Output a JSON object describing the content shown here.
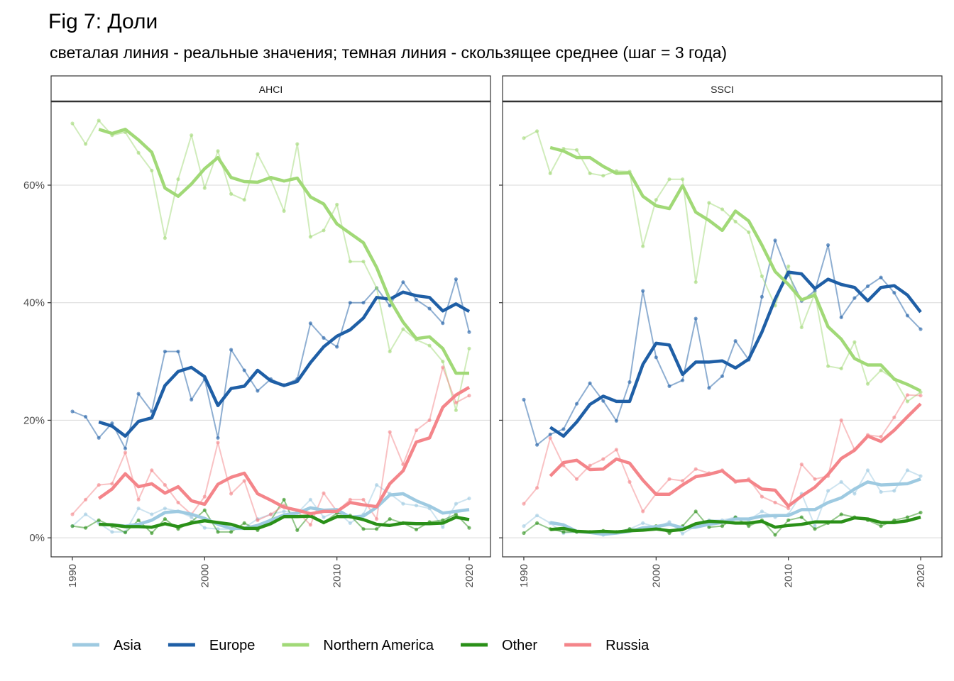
{
  "title": "Fig 7: Доли",
  "subtitle": "светалая линия - реальные значения; темная линия - скользящее среднее (шаг = 3 года)",
  "colors": {
    "Asia": "#9ecae1",
    "Europe": "#1f5fa6",
    "Northern America": "#a1d977",
    "Other": "#2a9018",
    "Russia": "#f4858a"
  },
  "legend": [
    "Asia",
    "Europe",
    "Northern America",
    "Other",
    "Russia"
  ],
  "chart_data": [
    {
      "type": "line",
      "panel": "AHCI",
      "x": [
        1990,
        1991,
        1992,
        1993,
        1994,
        1995,
        1996,
        1997,
        1998,
        1999,
        2000,
        2001,
        2002,
        2003,
        2004,
        2005,
        2006,
        2007,
        2008,
        2009,
        2010,
        2011,
        2012,
        2013,
        2014,
        2015,
        2016,
        2017,
        2018,
        2019,
        2020
      ],
      "xticks": [
        1990,
        2000,
        2010,
        2020
      ],
      "ylim": [
        -3,
        74
      ],
      "yticks": [
        0,
        20,
        40,
        60
      ],
      "ytick_labels": [
        "0%",
        "20%",
        "40%",
        "60%"
      ],
      "series": [
        {
          "name": "Asia",
          "values": [
            2.0,
            4.0,
            2.5,
            1.0,
            1.0,
            5.0,
            4.0,
            5.0,
            4.5,
            3.5,
            1.7,
            1.5,
            1.5,
            1.7,
            3.2,
            4.0,
            4.5,
            4.2,
            6.5,
            3.5,
            4.5,
            2.5,
            4.0,
            9.0,
            7.5,
            5.8,
            5.5,
            5.0,
            1.8,
            5.8,
            6.7
          ],
          "smooth": [
            null,
            null,
            2.3,
            2.2,
            2.0,
            2.3,
            3.0,
            4.3,
            4.5,
            4.0,
            3.3,
            2.3,
            1.6,
            1.6,
            2.1,
            3.0,
            3.9,
            4.2,
            5.1,
            4.7,
            4.8,
            3.5,
            3.7,
            5.2,
            7.3,
            7.5,
            6.3,
            5.4,
            4.2,
            4.5,
            4.8
          ]
        },
        {
          "name": "Europe",
          "values": [
            21.5,
            20.6,
            17.0,
            19.5,
            15.2,
            24.5,
            21.5,
            31.7,
            31.7,
            23.5,
            27.0,
            17.0,
            32.0,
            28.5,
            25.0,
            27.0,
            26.0,
            27.0,
            36.5,
            34.0,
            32.5,
            40.0,
            40.0,
            42.5,
            39.5,
            43.5,
            40.5,
            39.0,
            36.5,
            44.0,
            35.0
          ],
          "smooth": [
            null,
            null,
            19.7,
            19.0,
            17.3,
            19.8,
            20.4,
            25.9,
            28.3,
            29.0,
            27.4,
            22.5,
            25.4,
            25.8,
            28.5,
            26.7,
            25.9,
            26.6,
            29.8,
            32.5,
            34.3,
            35.4,
            37.4,
            40.9,
            40.6,
            41.8,
            41.2,
            40.9,
            38.6,
            39.8,
            38.5
          ]
        },
        {
          "name": "Northern America",
          "values": [
            70.5,
            67.0,
            71.0,
            68.5,
            69.0,
            65.5,
            62.5,
            51.0,
            61.0,
            68.5,
            59.5,
            65.8,
            58.5,
            57.5,
            65.3,
            61.0,
            55.6,
            67.0,
            51.2,
            52.3,
            56.7,
            47.0,
            47.0,
            42.5,
            31.7,
            35.5,
            33.7,
            32.7,
            30.0,
            21.7,
            32.2
          ],
          "smooth": [
            null,
            null,
            69.5,
            68.8,
            69.5,
            67.7,
            65.6,
            59.5,
            58.1,
            60.2,
            62.8,
            64.7,
            61.3,
            60.6,
            60.5,
            61.3,
            60.7,
            61.2,
            58.0,
            56.8,
            53.4,
            51.8,
            50.2,
            46.0,
            40.5,
            36.7,
            33.9,
            34.2,
            32.2,
            28.0,
            28.0
          ]
        },
        {
          "name": "Other",
          "values": [
            2.0,
            1.7,
            3.0,
            2.0,
            0.9,
            3.0,
            0.8,
            3.2,
            1.5,
            2.7,
            4.7,
            1.0,
            1.0,
            2.5,
            1.3,
            3.0,
            6.5,
            1.3,
            4.0,
            2.6,
            4.2,
            3.8,
            1.5,
            1.5,
            3.2,
            2.5,
            1.4,
            2.7,
            3.0,
            4.0,
            1.7
          ],
          "smooth": [
            null,
            null,
            2.3,
            2.2,
            1.9,
            1.9,
            1.8,
            2.4,
            1.9,
            2.5,
            2.9,
            2.6,
            2.3,
            1.6,
            1.6,
            2.4,
            3.6,
            3.6,
            3.7,
            2.6,
            3.6,
            3.6,
            3.1,
            2.3,
            2.1,
            2.5,
            2.4,
            2.4,
            2.5,
            3.5,
            3.1
          ]
        },
        {
          "name": "Russia",
          "values": [
            4.0,
            6.5,
            9.0,
            9.2,
            14.5,
            6.5,
            11.5,
            9.0,
            6.0,
            4.0,
            7.0,
            16.2,
            7.5,
            9.7,
            3.0,
            4.0,
            5.5,
            4.5,
            2.2,
            7.6,
            4.5,
            6.5,
            6.5,
            3.2,
            18.0,
            12.5,
            18.3,
            20.0,
            29.0,
            23.0,
            24.2
          ],
          "smooth": [
            null,
            null,
            6.7,
            8.3,
            10.9,
            8.7,
            9.2,
            7.6,
            8.7,
            6.3,
            5.7,
            9.1,
            10.3,
            11.0,
            7.5,
            6.4,
            5.2,
            4.7,
            4.1,
            4.5,
            4.5,
            6.0,
            5.6,
            5.3,
            9.2,
            11.4,
            16.3,
            17.0,
            22.2,
            24.3,
            25.6
          ]
        }
      ]
    },
    {
      "type": "line",
      "panel": "SSCI",
      "x": [
        1990,
        1991,
        1992,
        1993,
        1994,
        1995,
        1996,
        1997,
        1998,
        1999,
        2000,
        2001,
        2002,
        2003,
        2004,
        2005,
        2006,
        2007,
        2008,
        2009,
        2010,
        2011,
        2012,
        2013,
        2014,
        2015,
        2016,
        2017,
        2018,
        2019,
        2020
      ],
      "xticks": [
        1990,
        2000,
        2010,
        2020
      ],
      "ylim": [
        -3,
        74
      ],
      "yticks": [
        0,
        20,
        40,
        60
      ],
      "ytick_labels": [
        "0%",
        "20%",
        "40%",
        "60%"
      ],
      "series": [
        {
          "name": "Asia",
          "values": [
            2.0,
            3.8,
            2.5,
            0.8,
            1.0,
            1.0,
            0.5,
            1.0,
            1.5,
            2.5,
            1.8,
            2.7,
            0.7,
            2.0,
            3.0,
            3.0,
            3.5,
            3.0,
            4.5,
            3.5,
            4.0,
            7.5,
            2.0,
            8.0,
            9.5,
            7.5,
            11.5,
            7.8,
            8.0,
            11.5,
            10.5
          ],
          "smooth": [
            null,
            null,
            2.6,
            2.2,
            1.1,
            0.9,
            0.6,
            0.8,
            1.1,
            1.7,
            1.9,
            2.3,
            1.7,
            1.8,
            2.3,
            2.6,
            3.2,
            3.2,
            3.7,
            3.8,
            3.8,
            4.8,
            4.8,
            6.0,
            6.8,
            8.3,
            9.5,
            9.0,
            9.1,
            9.2,
            10.0
          ]
        },
        {
          "name": "Europe",
          "values": [
            23.5,
            15.8,
            17.6,
            18.5,
            22.8,
            26.3,
            23.3,
            19.9,
            26.5,
            42.0,
            30.7,
            25.8,
            26.8,
            37.3,
            25.5,
            27.5,
            33.5,
            30.3,
            41.0,
            50.6,
            44.8,
            40.3,
            42.0,
            49.8,
            37.5,
            40.8,
            42.8,
            44.3,
            41.7,
            37.8,
            35.5
          ],
          "smooth": [
            null,
            null,
            18.8,
            17.3,
            19.7,
            22.7,
            24.1,
            23.2,
            23.2,
            29.5,
            33.1,
            32.8,
            27.8,
            29.9,
            29.9,
            30.1,
            28.9,
            30.4,
            35.0,
            40.6,
            45.2,
            44.9,
            42.4,
            44.0,
            43.1,
            42.6,
            40.3,
            42.6,
            42.9,
            41.3,
            38.4
          ]
        },
        {
          "name": "Northern America",
          "values": [
            68.0,
            69.2,
            62.0,
            66.2,
            66.0,
            62.0,
            61.6,
            62.4,
            62.3,
            49.6,
            57.5,
            61.0,
            61.0,
            43.5,
            57.0,
            55.9,
            53.8,
            52.0,
            44.5,
            39.5,
            46.2,
            35.8,
            41.6,
            29.2,
            28.8,
            33.3,
            26.2,
            28.5,
            27.0,
            23.2,
            24.8
          ],
          "smooth": [
            null,
            null,
            66.4,
            65.8,
            64.7,
            64.7,
            63.2,
            62.0,
            62.1,
            58.1,
            56.5,
            56.0,
            59.9,
            55.4,
            54.0,
            52.3,
            55.6,
            53.9,
            49.8,
            45.3,
            43.1,
            40.5,
            41.3,
            35.9,
            33.8,
            30.5,
            29.4,
            29.4,
            27.0,
            26.1,
            25.0
          ]
        },
        {
          "name": "Other",
          "values": [
            0.8,
            2.5,
            1.5,
            1.0,
            1.0,
            1.0,
            1.2,
            1.0,
            1.5,
            1.5,
            2.0,
            0.8,
            2.0,
            4.5,
            1.8,
            2.0,
            3.5,
            2.0,
            3.0,
            0.5,
            3.0,
            3.5,
            1.5,
            2.5,
            4.0,
            3.5,
            3.0,
            2.0,
            3.0,
            3.5,
            4.3
          ],
          "smooth": [
            null,
            null,
            1.4,
            1.6,
            1.1,
            1.0,
            1.1,
            1.0,
            1.2,
            1.3,
            1.5,
            1.2,
            1.4,
            2.4,
            2.8,
            2.7,
            2.5,
            2.5,
            2.8,
            1.8,
            2.1,
            2.3,
            2.7,
            2.7,
            2.7,
            3.4,
            3.2,
            2.6,
            2.6,
            2.9,
            3.5
          ]
        },
        {
          "name": "Russia",
          "values": [
            5.8,
            8.5,
            17.0,
            12.3,
            10.0,
            12.3,
            13.4,
            15.0,
            9.5,
            4.5,
            7.5,
            10.0,
            9.7,
            11.7,
            11.0,
            11.5,
            9.5,
            10.0,
            7.0,
            6.0,
            5.0,
            12.5,
            10.0,
            10.5,
            20.0,
            15.0,
            17.5,
            17.2,
            20.5,
            24.3,
            24.2
          ],
          "smooth": [
            null,
            null,
            10.5,
            12.8,
            13.2,
            11.6,
            11.7,
            13.4,
            12.7,
            9.8,
            7.4,
            7.4,
            9.0,
            10.4,
            10.8,
            11.4,
            9.6,
            9.8,
            8.3,
            8.1,
            5.4,
            7.1,
            8.6,
            10.8,
            13.5,
            14.9,
            17.3,
            16.4,
            18.3,
            20.6,
            22.8
          ]
        }
      ]
    }
  ]
}
